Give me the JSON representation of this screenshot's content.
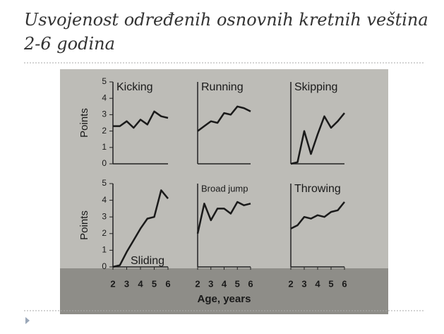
{
  "slide": {
    "title": [
      "Usvojenost određenih osnovnih kretnih veština",
      "2-6 godina"
    ]
  },
  "chart_data": [
    {
      "type": "line",
      "title": "Kicking",
      "y_label": "Points",
      "x": [
        2,
        2.5,
        3,
        3.5,
        4,
        4.5,
        5,
        5.5,
        6
      ],
      "values": [
        2.3,
        2.3,
        2.6,
        2.2,
        2.7,
        2.4,
        3.2,
        2.9,
        2.8
      ],
      "color": "#1a1a1a",
      "xlim": [
        2,
        6
      ],
      "ylim": [
        0,
        5
      ],
      "yticks": [
        0,
        1,
        2,
        3,
        4,
        5
      ]
    },
    {
      "type": "line",
      "title": "Running",
      "x": [
        2,
        2.5,
        3,
        3.5,
        4,
        4.5,
        5,
        5.5,
        6
      ],
      "values": [
        2.0,
        2.3,
        2.6,
        2.5,
        3.1,
        3.0,
        3.5,
        3.4,
        3.2
      ],
      "color": "#1a1a1a",
      "xlim": [
        2,
        6
      ],
      "ylim": [
        0,
        5
      ]
    },
    {
      "type": "line",
      "title": "Skipping",
      "x": [
        2,
        2.5,
        3,
        3.5,
        4,
        4.5,
        5,
        5.5,
        6
      ],
      "values": [
        0,
        0.1,
        2.0,
        0.6,
        1.8,
        2.9,
        2.2,
        2.6,
        3.1
      ],
      "color": "#1a1a1a",
      "xlim": [
        2,
        6
      ],
      "ylim": [
        0,
        5
      ]
    },
    {
      "type": "line",
      "title": "Sliding",
      "y_label": "Points",
      "x": [
        2,
        2.5,
        3,
        3.5,
        4,
        4.5,
        5,
        5.5,
        6
      ],
      "values": [
        0,
        0.1,
        0.9,
        1.6,
        2.3,
        2.9,
        3.0,
        4.6,
        4.1
      ],
      "color": "#1a1a1a",
      "xlim": [
        2,
        6
      ],
      "ylim": [
        0,
        5
      ],
      "yticks": [
        0,
        1,
        2,
        3,
        4,
        5
      ],
      "xticks": [
        2,
        3,
        4,
        5,
        6
      ]
    },
    {
      "type": "line",
      "title": "Broad jump",
      "x_label": "Age, years",
      "x": [
        2,
        2.5,
        3,
        3.5,
        4,
        4.5,
        5,
        5.5,
        6
      ],
      "values": [
        2.0,
        3.8,
        2.8,
        3.5,
        3.5,
        3.2,
        3.9,
        3.7,
        3.8
      ],
      "color": "#1a1a1a",
      "xlim": [
        2,
        6
      ],
      "ylim": [
        0,
        5
      ],
      "xticks": [
        2,
        3,
        4,
        5,
        6
      ]
    },
    {
      "type": "line",
      "title": "Throwing",
      "x": [
        2,
        2.5,
        3,
        3.5,
        4,
        4.5,
        5,
        5.5,
        6
      ],
      "values": [
        2.3,
        2.5,
        3.0,
        2.9,
        3.1,
        3.0,
        3.3,
        3.4,
        3.9
      ],
      "color": "#1a1a1a",
      "xlim": [
        2,
        6
      ],
      "ylim": [
        0,
        5
      ],
      "xticks": [
        2,
        3,
        4,
        5,
        6
      ]
    }
  ]
}
